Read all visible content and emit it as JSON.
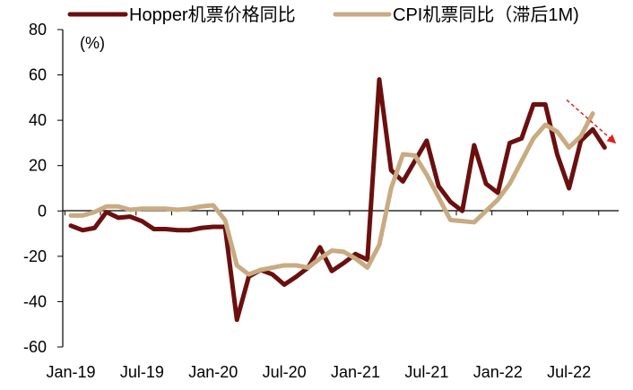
{
  "chart_data": {
    "type": "line",
    "unit_label": "(%)",
    "ylim": [
      -60,
      80
    ],
    "y_ticks": [
      "80",
      "60",
      "40",
      "20",
      "0",
      "-20",
      "-40",
      "-60"
    ],
    "x_tick_labels": [
      "Jan-19",
      "Jul-19",
      "Jan-20",
      "Jul-20",
      "Jan-21",
      "Jul-21",
      "Jan-22",
      "Jul-22"
    ],
    "x_tick_positions": [
      0,
      6,
      12,
      18,
      24,
      30,
      36,
      42
    ],
    "x_months": [
      "2019-01",
      "2019-02",
      "2019-03",
      "2019-04",
      "2019-05",
      "2019-06",
      "2019-07",
      "2019-08",
      "2019-09",
      "2019-10",
      "2019-11",
      "2019-12",
      "2020-01",
      "2020-02",
      "2020-03",
      "2020-04",
      "2020-05",
      "2020-06",
      "2020-07",
      "2020-08",
      "2020-09",
      "2020-10",
      "2020-11",
      "2020-12",
      "2021-01",
      "2021-02",
      "2021-03",
      "2021-04",
      "2021-05",
      "2021-06",
      "2021-07",
      "2021-08",
      "2021-09",
      "2021-10",
      "2021-11",
      "2021-12",
      "2022-01",
      "2022-02",
      "2022-03",
      "2022-04",
      "2022-05",
      "2022-06",
      "2022-07",
      "2022-08",
      "2022-09",
      "2022-10"
    ],
    "grid": false,
    "legend_position": "top",
    "series": [
      {
        "name": "Hopper机票价格同比",
        "color": "#6b0f0f",
        "values": [
          -6.5,
          -8.5,
          -7.5,
          -0.5,
          -3,
          -2.5,
          -4.5,
          -8,
          -8,
          -8.5,
          -8.5,
          -7.5,
          -7,
          -7,
          -48,
          -29,
          -26,
          -28,
          -32.5,
          -29,
          -25,
          -16,
          -26.5,
          -23,
          -19,
          -21.5,
          58,
          18,
          13,
          22,
          31,
          11,
          4,
          0,
          29,
          12,
          8,
          30,
          32,
          47,
          47,
          25,
          10,
          31,
          36,
          28
        ]
      },
      {
        "name": "CPI机票同比（滞后1M)",
        "color": "#c8ab82",
        "values": [
          -2,
          -2,
          -0.5,
          2,
          2,
          0.5,
          1,
          1,
          1,
          0.5,
          1,
          2,
          2.5,
          -4,
          -24,
          -28,
          -26,
          -25,
          -24,
          -24,
          -25,
          -21,
          -17.5,
          -18,
          -21,
          -25,
          -15,
          10,
          25,
          24.5,
          16,
          6,
          -4,
          -4.5,
          -5,
          0,
          5,
          12,
          22,
          32,
          38,
          35,
          28,
          33,
          43
        ]
      }
    ],
    "annotations": [
      {
        "type": "arrow",
        "color": "#e02020",
        "from": [
          41.8,
          49
        ],
        "to": [
          45.8,
          30.5
        ]
      }
    ]
  }
}
